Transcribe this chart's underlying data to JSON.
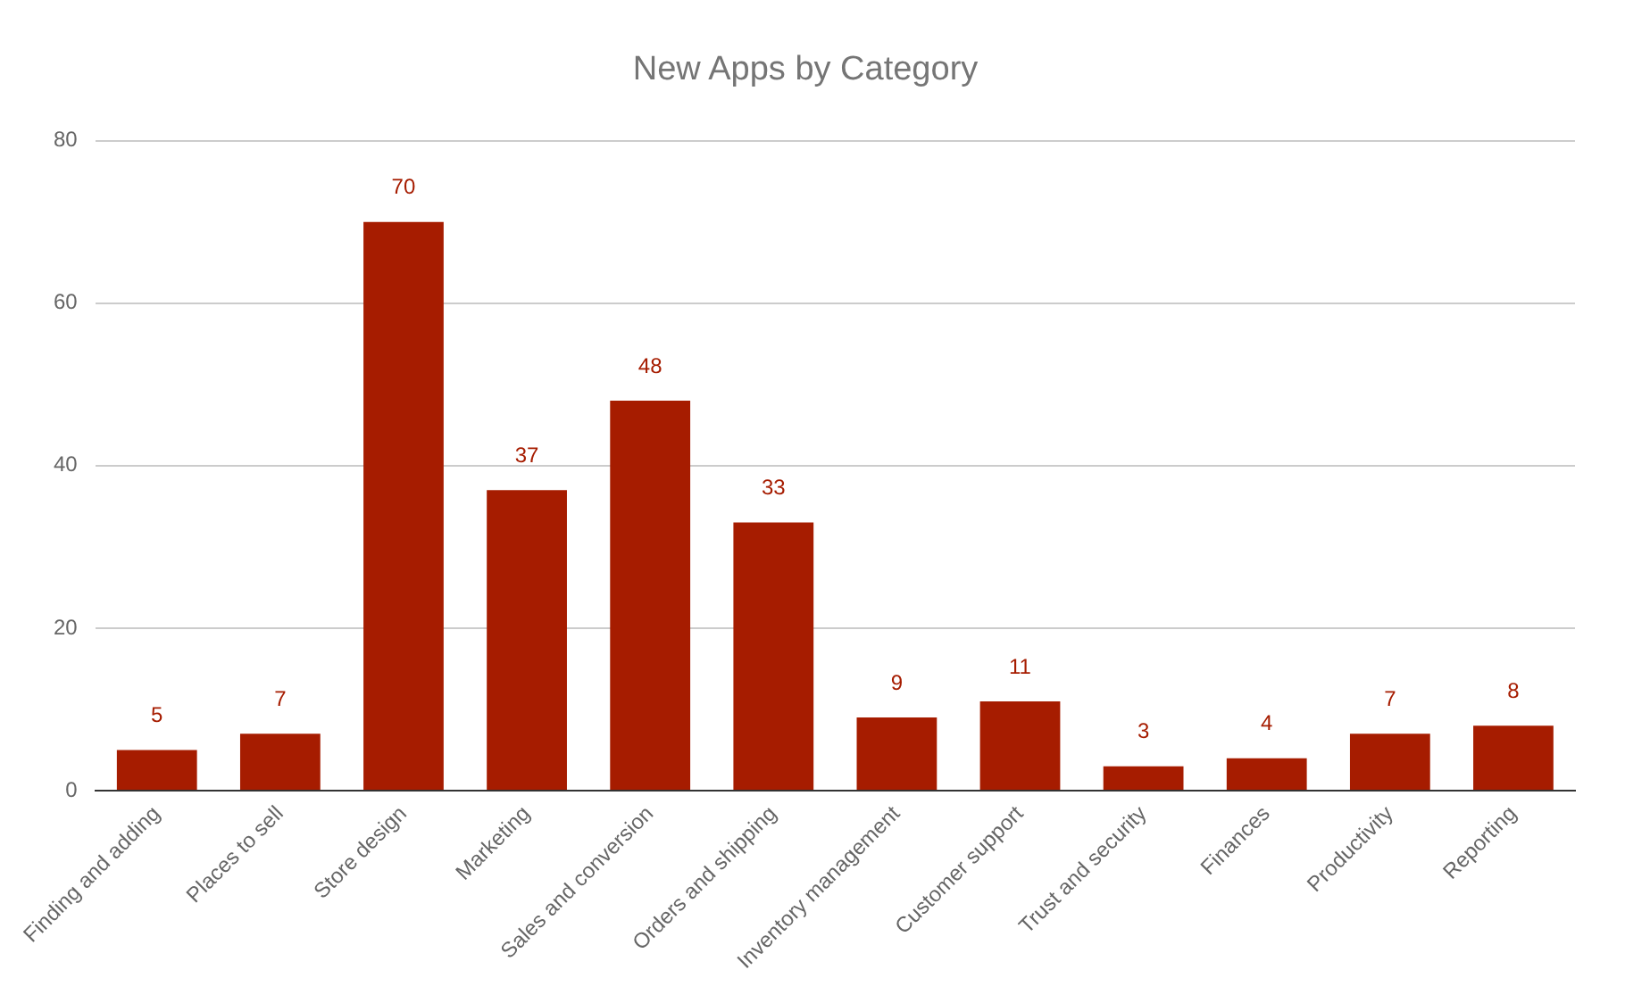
{
  "chart_data": {
    "type": "bar",
    "title": "New Apps by Category",
    "categories": [
      "Finding and adding",
      "Places to sell",
      "Store design",
      "Marketing",
      "Sales and conversion",
      "Orders and shipping",
      "Inventory management",
      "Customer support",
      "Trust and security",
      "Finances",
      "Productivity",
      "Reporting"
    ],
    "values": [
      5,
      7,
      70,
      37,
      48,
      33,
      9,
      11,
      3,
      4,
      7,
      8
    ],
    "color": "#a61c00",
    "ylim": [
      0,
      80
    ],
    "yticks": [
      0,
      20,
      40,
      60,
      80
    ],
    "grid": "y",
    "data_labels": true
  }
}
